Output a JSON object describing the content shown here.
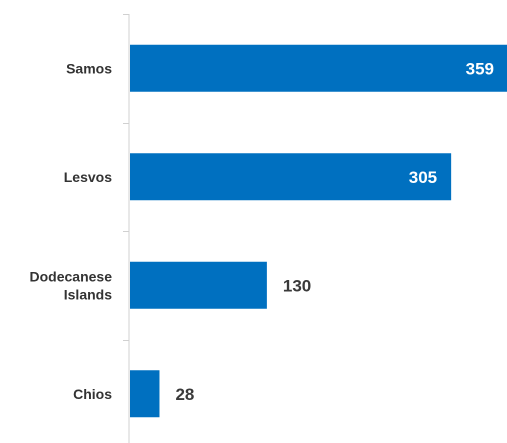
{
  "colors": {
    "bar": "#0070C0",
    "axis": "#d0d0d0",
    "label": "#333333",
    "value_inside": "#ffffff",
    "value_outside": "#3a3a3a"
  },
  "chart_data": {
    "type": "bar",
    "orientation": "horizontal",
    "categories": [
      [
        "Samos"
      ],
      [
        "Lesvos"
      ],
      [
        "Dodecanese",
        "Islands"
      ],
      [
        "Chios"
      ]
    ],
    "values": [
      359,
      305,
      130,
      28
    ],
    "value_labels": [
      "359",
      "305",
      "130",
      "28"
    ],
    "title": "",
    "xlabel": "",
    "ylabel": "",
    "xlim": [
      0,
      359
    ],
    "grid": false,
    "legend": "none"
  }
}
